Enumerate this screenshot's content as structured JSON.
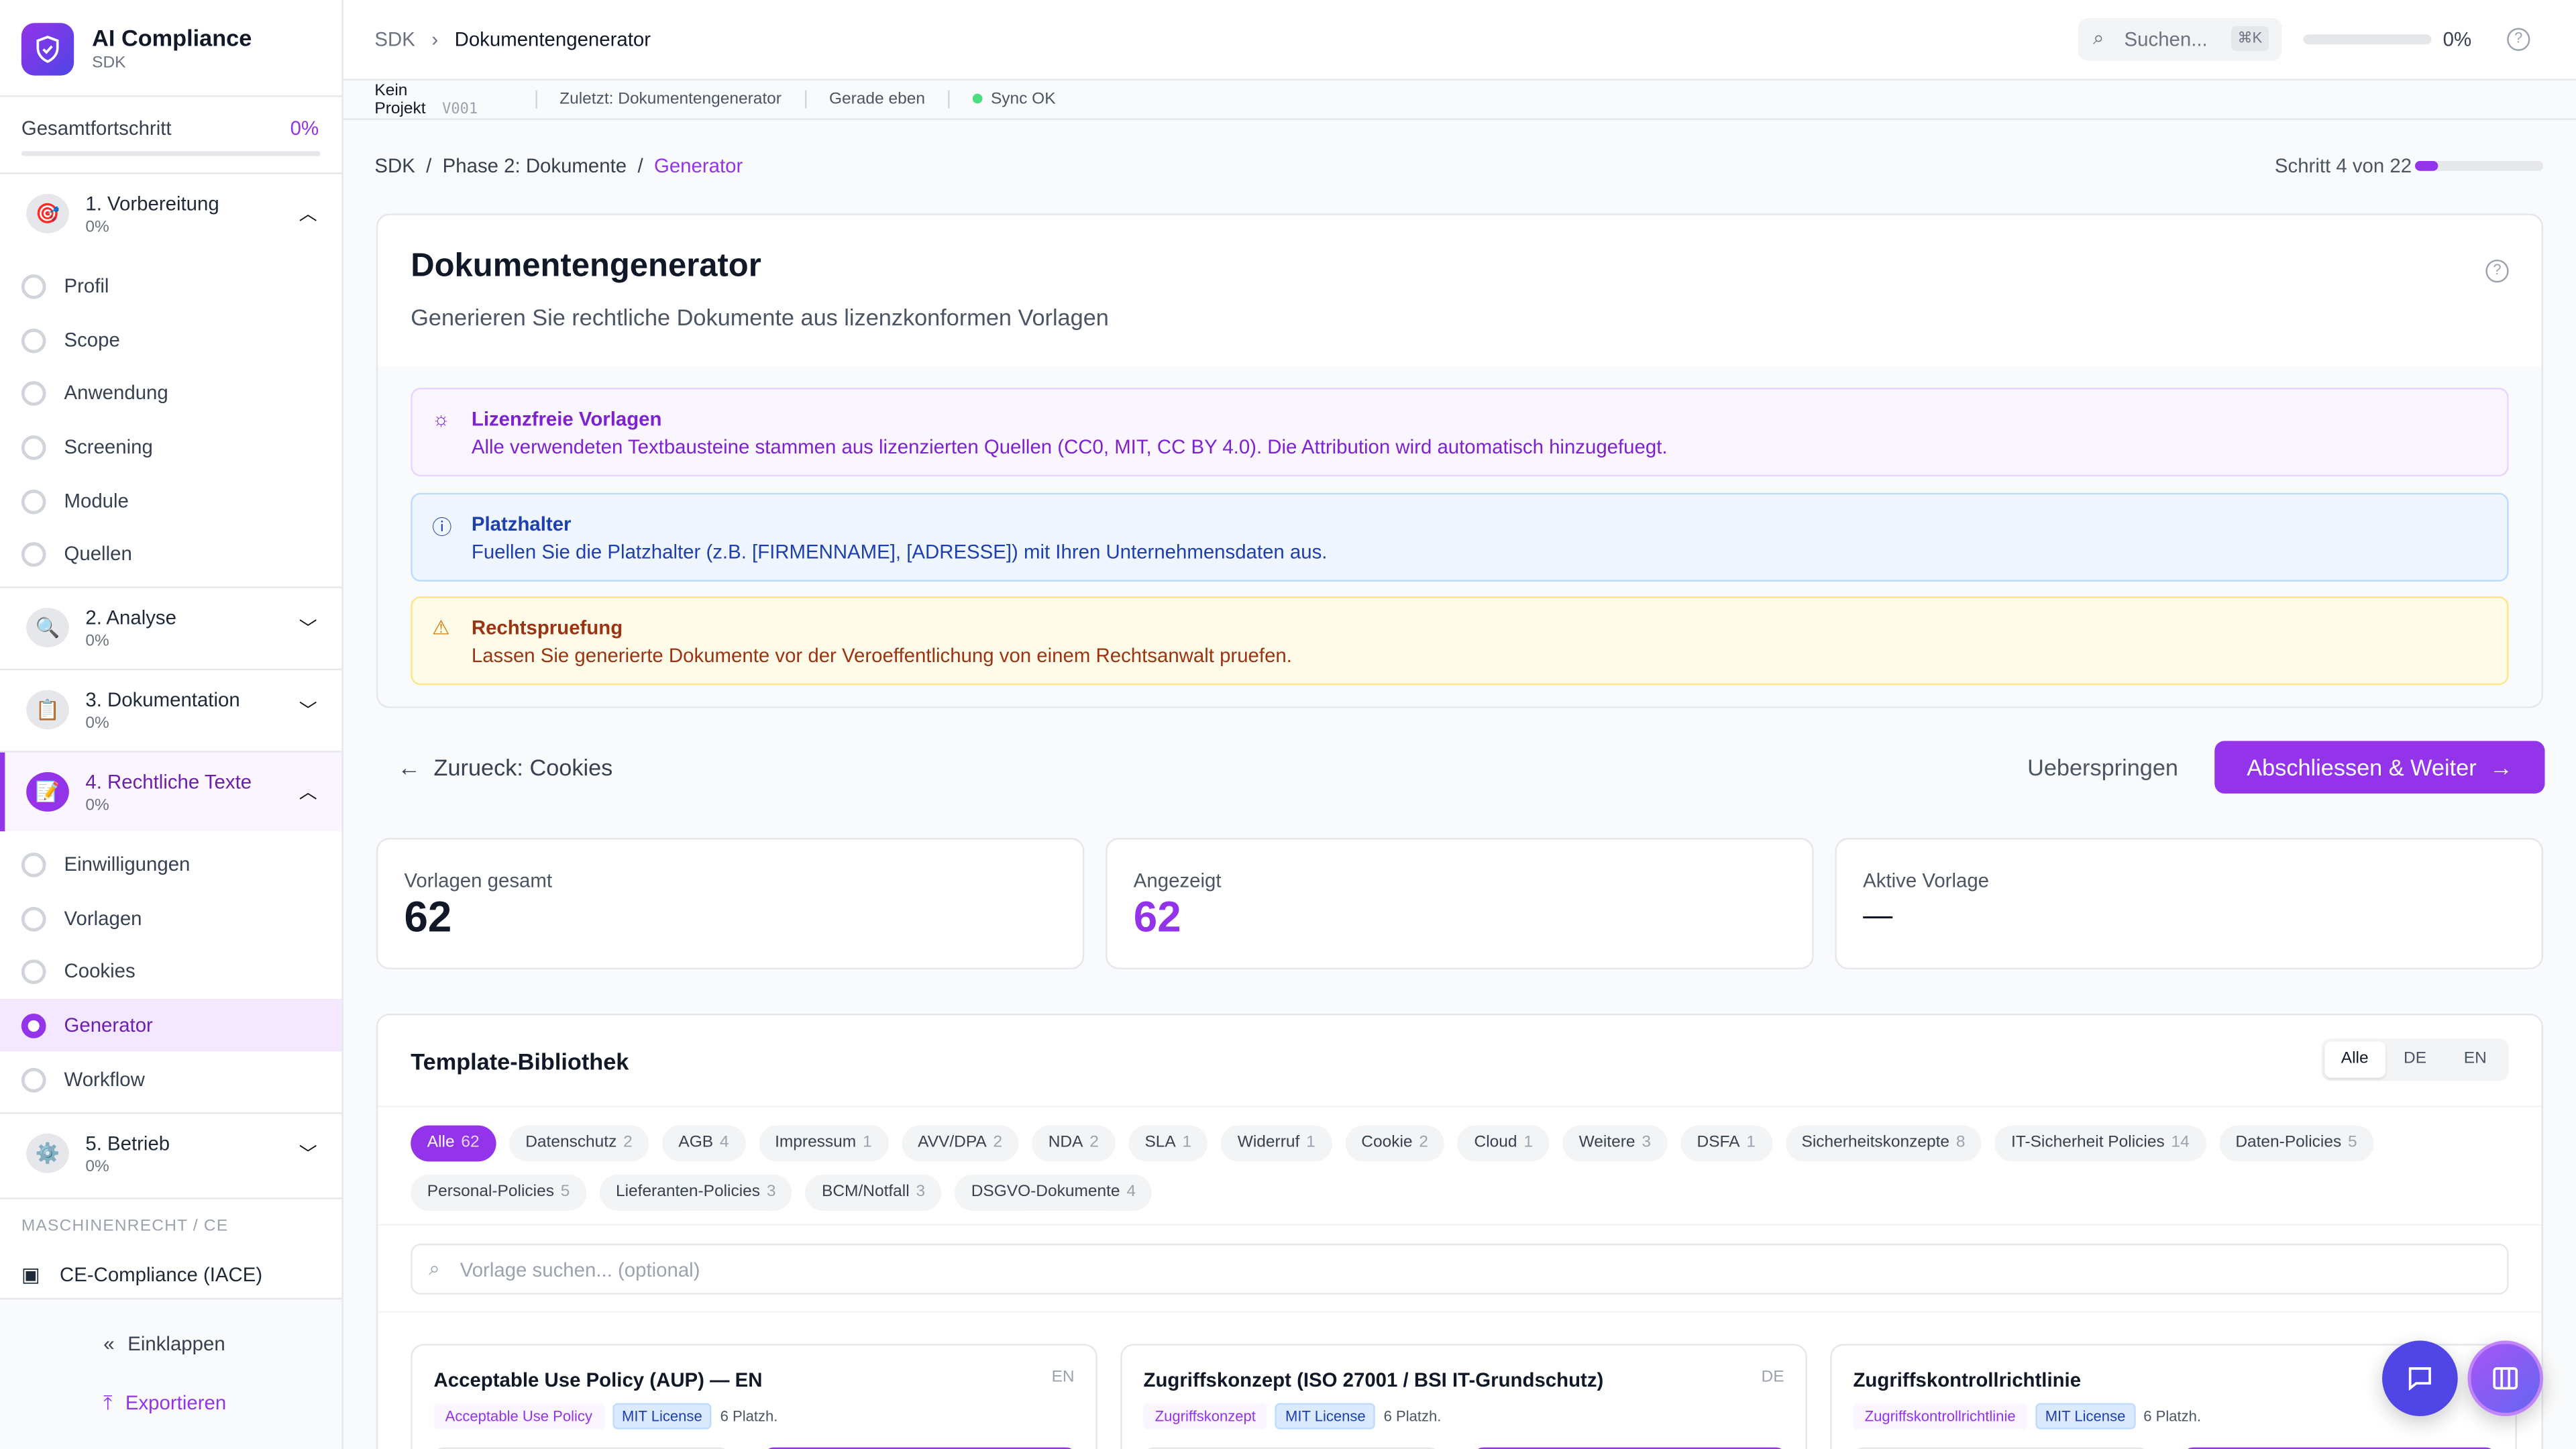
{
  "app": {
    "title": "AI Compliance",
    "subtitle": "SDK"
  },
  "sidebar": {
    "progress_label": "Gesamtfortschritt",
    "progress_value": "0%",
    "progress_fraction": 0,
    "sections": [
      {
        "label": "1. Vorbereitung",
        "pct": "0%",
        "icon": "target-icon",
        "expanded": true,
        "items": [
          {
            "label": "Profil"
          },
          {
            "label": "Scope"
          },
          {
            "label": "Anwendung"
          },
          {
            "label": "Screening"
          },
          {
            "label": "Module"
          },
          {
            "label": "Quellen"
          }
        ]
      },
      {
        "label": "2. Analyse",
        "pct": "0%",
        "icon": "magnifier-icon",
        "expanded": false
      },
      {
        "label": "3. Dokumentation",
        "pct": "0%",
        "icon": "clipboard-icon",
        "expanded": false
      },
      {
        "label": "4. Rechtliche Texte",
        "pct": "0%",
        "icon": "memo-icon",
        "expanded": true,
        "active": true,
        "items": [
          {
            "label": "Einwilligungen"
          },
          {
            "label": "Vorlagen"
          },
          {
            "label": "Cookies"
          },
          {
            "label": "Generator",
            "active": true
          },
          {
            "label": "Workflow"
          }
        ]
      },
      {
        "label": "5. Betrieb",
        "pct": "0%",
        "icon": "gear-icon",
        "expanded": false
      }
    ],
    "group_heading": "MASCHINENRECHT / CE",
    "ce_item": "CE-Compliance (IACE)",
    "collapse_label": "Einklappen",
    "export_label": "Exportieren"
  },
  "topbar": {
    "breadcrumb_root": "SDK",
    "breadcrumb_current": "Dokumentengenerator",
    "search_placeholder": "Suchen...",
    "search_shortcut": "⌘K",
    "progress_value": "0%",
    "progress_fraction": 0
  },
  "meta": {
    "project": "Kein Projekt",
    "version": "V001",
    "last": "Zuletzt: Dokumentengenerator",
    "time": "Gerade eben",
    "sync": "Sync OK"
  },
  "crumbs": {
    "a": "SDK",
    "b": "Phase 2: Dokumente",
    "c": "Generator",
    "step": "Schritt 4 von 22",
    "step_current": 4,
    "step_total": 22
  },
  "page": {
    "title": "Dokumentengenerator",
    "subtitle": "Generieren Sie rechtliche Dokumente aus lizenzkonformen Vorlagen"
  },
  "alerts": [
    {
      "title": "Lizenzfreie Vorlagen",
      "body": "Alle verwendeten Textbausteine stammen aus lizenzierten Quellen (CC0, MIT, CC BY 4.0). Die Attribution wird automatisch hinzugefuegt.",
      "color": "#7e22ce"
    },
    {
      "title": "Platzhalter",
      "body": "Fuellen Sie die Platzhalter (z.B. [FIRMENNAME], [ADRESSE]) mit Ihren Unternehmensdaten aus.",
      "color": "#1e40af"
    },
    {
      "title": "Rechtspruefung",
      "body": "Lassen Sie generierte Dokumente vor der Veroeffentlichung von einem Rechtsanwalt pruefen.",
      "color": "#9a3412"
    }
  ],
  "nav": {
    "back": "Zurueck: Cookies",
    "skip": "Ueberspringen",
    "next": "Abschliessen & Weiter"
  },
  "stats": [
    {
      "label": "Vorlagen gesamt",
      "value": "62"
    },
    {
      "label": "Angezeigt",
      "value": "62"
    },
    {
      "label": "Aktive Vorlage",
      "value": "—"
    }
  ],
  "library": {
    "title": "Template-Bibliothek",
    "langs": [
      "Alle",
      "DE",
      "EN"
    ],
    "search_placeholder": "Vorlage suchen... (optional)",
    "chips": [
      {
        "l": "Alle",
        "n": "62"
      },
      {
        "l": "Datenschutz",
        "n": "2"
      },
      {
        "l": "AGB",
        "n": "4"
      },
      {
        "l": "Impressum",
        "n": "1"
      },
      {
        "l": "AVV/DPA",
        "n": "2"
      },
      {
        "l": "NDA",
        "n": "2"
      },
      {
        "l": "SLA",
        "n": "1"
      },
      {
        "l": "Widerruf",
        "n": "1"
      },
      {
        "l": "Cookie",
        "n": "2"
      },
      {
        "l": "Cloud",
        "n": "1"
      },
      {
        "l": "Weitere",
        "n": "3"
      },
      {
        "l": "DSFA",
        "n": "1"
      },
      {
        "l": "Sicherheitskonzepte",
        "n": "8"
      },
      {
        "l": "IT-Sicherheit Policies",
        "n": "14"
      },
      {
        "l": "Daten-Policies",
        "n": "5"
      },
      {
        "l": "Personal-Policies",
        "n": "5"
      },
      {
        "l": "Lieferanten-Policies",
        "n": "3"
      },
      {
        "l": "BCM/Notfall",
        "n": "3"
      },
      {
        "l": "DSGVO-Dokumente",
        "n": "4"
      }
    ],
    "templates": [
      {
        "title": "Acceptable Use Policy (AUP) — EN",
        "lang": "EN",
        "tag": "Acceptable Use Policy",
        "license": "MIT License",
        "placeholders": "6 Platzh."
      },
      {
        "title": "Zugriffskonzept (ISO 27001 / BSI IT-Grundschutz)",
        "lang": "DE",
        "tag": "Zugriffskonzept",
        "license": "MIT License",
        "placeholders": "6 Platzh."
      },
      {
        "title": "Zugriffskontrollrichtlinie",
        "lang": "",
        "tag": "Zugriffskontrollrichtlinie",
        "license": "MIT License",
        "placeholders": "6 Platzh."
      }
    ]
  },
  "colors": {
    "accent": "#9333ea",
    "fab_chat": "#4f46e5"
  }
}
